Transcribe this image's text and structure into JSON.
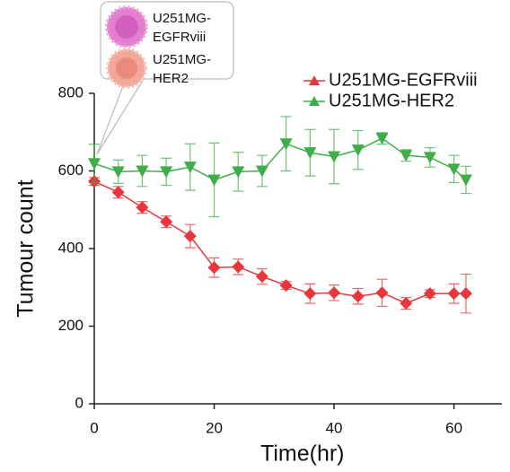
{
  "chart_data": {
    "type": "line",
    "x_label": "Time(hr)",
    "y_label": "Tumour count",
    "x": [
      0,
      4,
      8,
      12,
      16,
      20,
      24,
      28,
      32,
      36,
      40,
      44,
      48,
      52,
      56,
      60,
      62
    ],
    "series": [
      {
        "name": "U251MG-EGFRviii",
        "color": "#e8363a",
        "values": [
          573,
          545,
          506,
          469,
          432,
          351,
          353,
          328,
          305,
          284,
          286,
          277,
          286,
          259,
          284,
          284,
          284
        ],
        "errors": [
          10,
          15,
          15,
          15,
          30,
          25,
          20,
          20,
          10,
          25,
          20,
          20,
          35,
          15,
          10,
          25,
          50
        ]
      },
      {
        "name": "U251MG-HER2",
        "color": "#3fae49",
        "values": [
          619,
          598,
          600,
          598,
          610,
          577,
          598,
          600,
          670,
          647,
          637,
          654,
          684,
          640,
          635,
          605,
          577
        ],
        "errors": [
          50,
          30,
          40,
          35,
          60,
          95,
          50,
          40,
          70,
          60,
          70,
          50,
          15,
          15,
          25,
          35,
          35
        ]
      }
    ],
    "xlim": [
      0,
      68
    ],
    "ylim": [
      0,
      800
    ],
    "xticks": [
      0,
      20,
      40,
      60
    ],
    "yticks": [
      0,
      200,
      400,
      600,
      800
    ],
    "legend": "upper right",
    "annotation": [
      {
        "lines": [
          "U251MG-",
          "EGFRviii"
        ]
      },
      {
        "lines": [
          "U251MG-",
          "HER2"
        ]
      }
    ]
  }
}
